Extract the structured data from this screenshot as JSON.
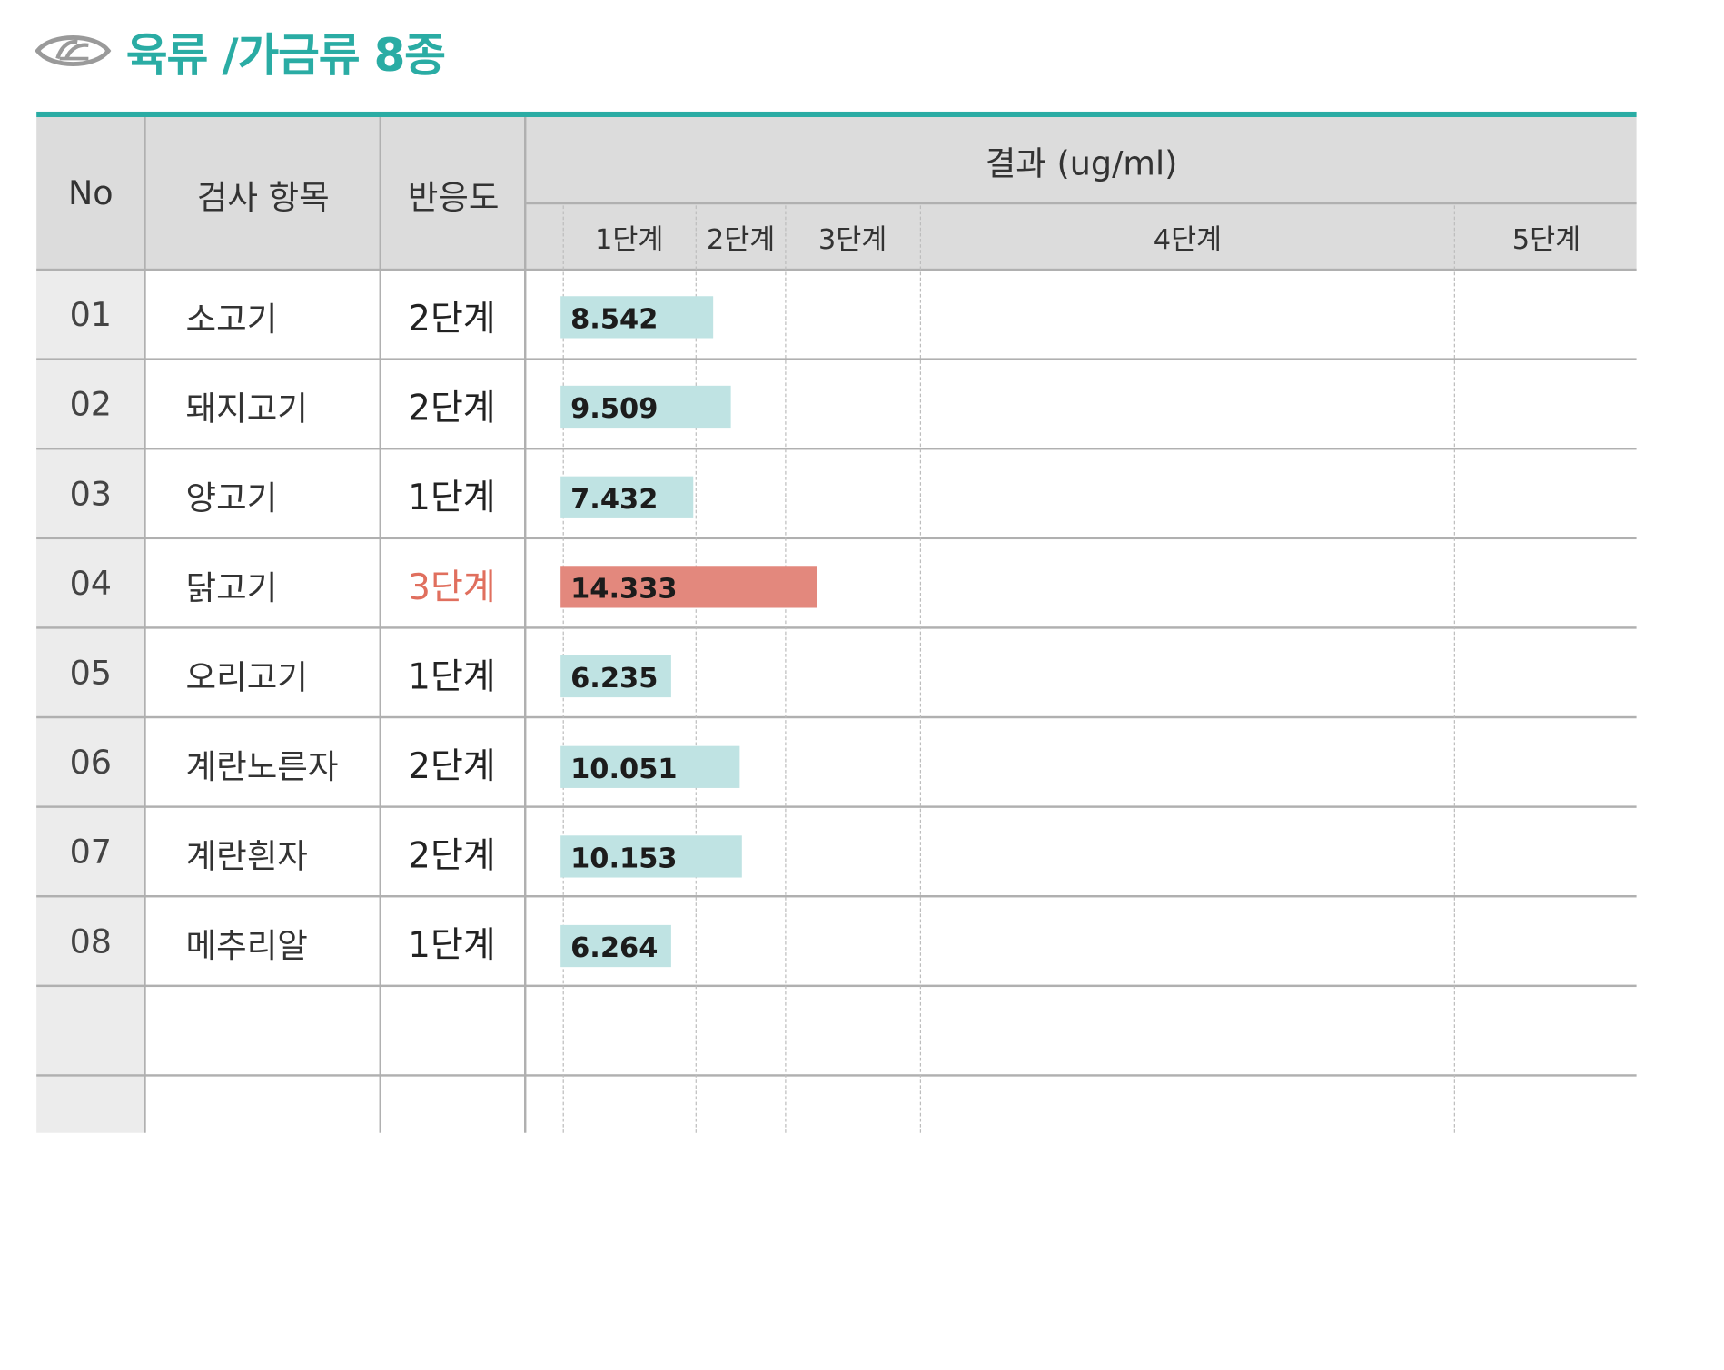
{
  "title": "육류 /가금류 8종",
  "colors": {
    "accent": "#2aaca4",
    "bar_normal": "#bfe3e3",
    "bar_alert": "#e3887d",
    "alert_text": "#e06f5e"
  },
  "table": {
    "headers": {
      "no": "No",
      "item": "검사 항목",
      "reaction": "반응도",
      "result": "결과 (ug/ml)"
    },
    "stages": [
      "1단계",
      "2단계",
      "3단계",
      "4단계",
      "5단계"
    ],
    "rows": [
      {
        "no": "01",
        "item": "소고기",
        "level": "2단계",
        "value": "8.542",
        "alert": false
      },
      {
        "no": "02",
        "item": "돼지고기",
        "level": "2단계",
        "value": "9.509",
        "alert": false
      },
      {
        "no": "03",
        "item": "양고기",
        "level": "1단계",
        "value": "7.432",
        "alert": false
      },
      {
        "no": "04",
        "item": "닭고기",
        "level": "3단계",
        "value": "14.333",
        "alert": true
      },
      {
        "no": "05",
        "item": "오리고기",
        "level": "1단계",
        "value": "6.235",
        "alert": false
      },
      {
        "no": "06",
        "item": "계란노른자",
        "level": "2단계",
        "value": "10.051",
        "alert": false
      },
      {
        "no": "07",
        "item": "계란흰자",
        "level": "2단계",
        "value": "10.153",
        "alert": false
      },
      {
        "no": "08",
        "item": "메추리알",
        "level": "1단계",
        "value": "6.264",
        "alert": false
      }
    ]
  },
  "chart_data": {
    "type": "bar",
    "orientation": "horizontal",
    "title": "결과 (ug/ml)",
    "categories": [
      "소고기",
      "돼지고기",
      "양고기",
      "닭고기",
      "오리고기",
      "계란노른자",
      "계란흰자",
      "메추리알"
    ],
    "values": [
      8.542,
      9.509,
      7.432,
      14.333,
      6.235,
      10.051,
      10.153,
      6.264
    ],
    "stage_labels": [
      "1단계",
      "2단계",
      "3단계",
      "4단계",
      "5단계"
    ],
    "stage_boundaries": [
      0,
      7.5,
      12.5,
      20,
      50,
      100
    ]
  }
}
